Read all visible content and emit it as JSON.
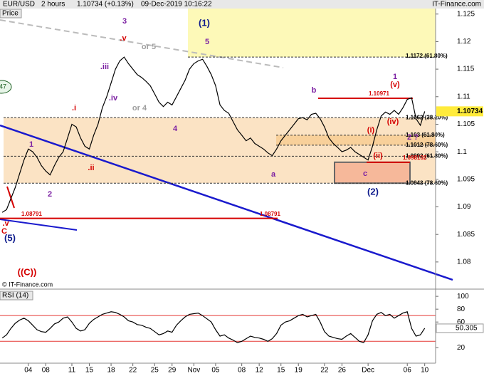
{
  "header": {
    "instrument": "EUR/USD",
    "timeframe": "2 hours",
    "quote": "1.10734 (+0.13%)",
    "datetime": "09-Dec-2019 10:16:22",
    "brand": "IT-Finance.com",
    "copyright": "© IT-Finance.com"
  },
  "chart_data": [
    {
      "type": "line",
      "title": "Price",
      "color": "#000000",
      "categories": [
        null,
        null,
        null,
        null,
        null,
        null,
        "04",
        null,
        null,
        null,
        "08",
        null,
        null,
        null,
        null,
        null,
        "11",
        null,
        null,
        null,
        "15",
        null,
        null,
        null,
        null,
        "18",
        null,
        null,
        null,
        null,
        "22",
        null,
        null,
        null,
        null,
        "25",
        null,
        null,
        null,
        "29",
        null,
        null,
        null,
        null,
        "Nov",
        null,
        null,
        null,
        null,
        "05",
        null,
        null,
        null,
        null,
        null,
        "08",
        null,
        null,
        null,
        "12",
        null,
        null,
        null,
        null,
        "15",
        null,
        null,
        null,
        "19",
        null,
        null,
        null,
        null,
        null,
        "22",
        null,
        null,
        null,
        "26",
        null,
        null,
        null,
        null,
        null,
        "Dec",
        null,
        null,
        null,
        null,
        null,
        null,
        null,
        null,
        "06",
        null,
        null,
        null,
        "10",
        null,
        null
      ],
      "values": [
        1.089,
        1.0895,
        1.0915,
        1.0935,
        1.096,
        1.0985,
        1.1005,
        1.1,
        1.099,
        1.0975,
        1.0965,
        1.0958,
        1.0975,
        1.099,
        1.1,
        1.1025,
        1.105,
        1.1045,
        1.1025,
        1.101,
        1.1005,
        1.103,
        1.105,
        1.108,
        1.11,
        1.1125,
        1.115,
        1.1165,
        1.1172,
        1.116,
        1.115,
        1.114,
        1.1135,
        1.1128,
        1.112,
        1.1105,
        1.109,
        1.1082,
        1.109,
        1.1085,
        1.11,
        1.1115,
        1.113,
        1.115,
        1.116,
        1.1165,
        1.1168,
        1.1155,
        1.114,
        1.112,
        1.1085,
        1.1075,
        1.107,
        1.1055,
        1.104,
        1.103,
        1.102,
        1.1025,
        1.1015,
        1.101,
        1.1005,
        1.0998,
        1.0993,
        1.1005,
        1.102,
        1.103,
        1.104,
        1.105,
        1.106,
        1.1062,
        1.1058,
        1.1068,
        1.107,
        1.106,
        1.1045,
        1.1025,
        1.1015,
        1.1008,
        1.1,
        1.1003,
        1.1008,
        1.1,
        1.0995,
        1.099,
        1.0985,
        1.101,
        1.104,
        1.1065,
        1.1072,
        1.1068,
        1.1075,
        1.1068,
        1.108,
        1.1095,
        1.1098,
        1.106,
        1.1048,
        1.10734,
        null,
        null
      ],
      "ylim": [
        1.0752,
        1.126
      ],
      "yticks": [
        1.125,
        1.12,
        1.115,
        1.11,
        1.105,
        1.1,
        1.095,
        1.09,
        1.085,
        1.08
      ],
      "fib_levels": [
        {
          "value": 1.1172,
          "label": "1.1172 (61.80%)"
        },
        {
          "value": 1.1062,
          "label": "1.1062 (38.20%)"
        },
        {
          "value": 1.103,
          "label": "1.103 (61.80%)"
        },
        {
          "value": 1.1012,
          "label": "1.1012 (78.60%)"
        },
        {
          "value": 1.0992,
          "label": "1.0992 (61.80%)"
        },
        {
          "value": 1.0943,
          "label": "1.0943 (78.60%)"
        }
      ],
      "red_levels": [
        {
          "value": 1.08791,
          "label": "1.08791"
        },
        {
          "value": 1.10971,
          "label": "1.10971"
        },
        {
          "value": 1.098102,
          "label": "1.098102"
        }
      ],
      "annotations": [
        {
          "text": "3",
          "color": "#7b1fa2"
        },
        {
          "text": ".v",
          "color": "#d50000"
        },
        {
          "text": "(1)",
          "color": "#0d1a8c"
        },
        {
          "text": "5",
          "color": "#7b1fa2"
        },
        {
          "text": "or 5",
          "color": "#9e9e9e"
        },
        {
          "text": ".iii",
          "color": "#7b1fa2"
        },
        {
          "text": ".iv",
          "color": "#7b1fa2"
        },
        {
          "text": "or 4",
          "color": "#9e9e9e"
        },
        {
          "text": ".i",
          "color": "#d50000"
        },
        {
          "text": "4",
          "color": "#7b1fa2"
        },
        {
          "text": "1",
          "color": "#7b1fa2"
        },
        {
          "text": ".ii",
          "color": "#d50000"
        },
        {
          "text": "2",
          "color": "#7b1fa2"
        },
        {
          "text": "b",
          "color": "#7b1fa2"
        },
        {
          "text": "a",
          "color": "#7b1fa2"
        },
        {
          "text": "c",
          "color": "#7b1fa2"
        },
        {
          "text": "(2)",
          "color": "#0d1a8c"
        },
        {
          "text": "1",
          "color": "#7b1fa2"
        },
        {
          "text": "(v)",
          "color": "#d50000"
        },
        {
          "text": "(i)",
          "color": "#d50000"
        },
        {
          "text": "(iv)",
          "color": "#d50000"
        },
        {
          "text": "(ii)",
          "color": "#d50000"
        },
        {
          "text": "2 ?",
          "color": "#7b1fa2"
        },
        {
          "text": ".v",
          "color": "#d50000"
        },
        {
          "text": "C",
          "color": "#d50000"
        },
        {
          "text": "(5)",
          "color": "#0d1a8c"
        },
        {
          "text": "((C))",
          "color": "#d50000"
        },
        {
          "text": "47",
          "color": "#1b5e20"
        }
      ]
    },
    {
      "type": "line",
      "title": "RSI (14)",
      "color": "#000000",
      "values": [
        35,
        40,
        50,
        58,
        63,
        66,
        62,
        55,
        48,
        45,
        44,
        50,
        57,
        60,
        66,
        68,
        60,
        50,
        46,
        48,
        58,
        64,
        68,
        72,
        74,
        76,
        75,
        72,
        68,
        62,
        60,
        56,
        55,
        52,
        50,
        45,
        40,
        42,
        46,
        44,
        55,
        62,
        68,
        72,
        73,
        74,
        70,
        65,
        60,
        48,
        38,
        40,
        35,
        32,
        28,
        30,
        34,
        38,
        36,
        35,
        33,
        30,
        34,
        42,
        55,
        60,
        62,
        66,
        70,
        72,
        68,
        70,
        72,
        60,
        45,
        38,
        36,
        34,
        33,
        38,
        42,
        36,
        30,
        28,
        40,
        62,
        72,
        75,
        70,
        72,
        66,
        70,
        74,
        76,
        50,
        38,
        40,
        50.305,
        null,
        null
      ],
      "ylim": [
        7,
        109
      ],
      "yticks": [
        20,
        60,
        80,
        100
      ],
      "bands": [
        70,
        30
      ],
      "band_color": "#e53935"
    }
  ]
}
